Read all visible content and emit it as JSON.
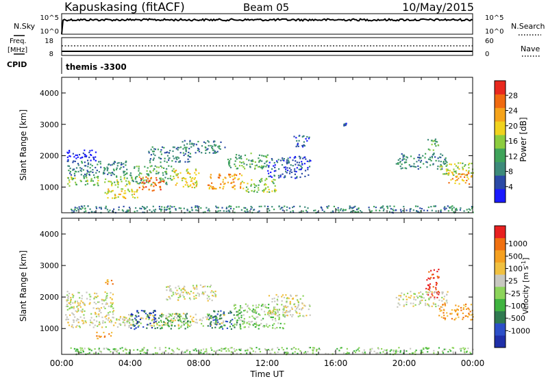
{
  "header": {
    "station": "Kapuskasing (fitACF)",
    "beam": "Beam 05",
    "date": "10/May/2015"
  },
  "status_panels": {
    "nsky_label": "N.Sky",
    "nsky_ticks": [
      "10^5",
      "10^0"
    ],
    "nsearch_label": "N.Search",
    "nsearch_ticks": [
      "10^5",
      "10^0"
    ],
    "freq_label_1": "Freq.",
    "freq_label_2": "[MHz]",
    "freq_ticks": [
      "18",
      "8"
    ],
    "nave_label": "Nave",
    "nave_ticks": [
      "60",
      "0"
    ],
    "cpid_label": "CPID",
    "cpid_value": "themis -3300"
  },
  "chart_data": [
    {
      "type": "heatmap",
      "name": "power",
      "ylabel": "Slant Range [km]",
      "xlabel": "Time UT",
      "x_range_hours": [
        0,
        24
      ],
      "ylim_km": [
        180,
        4500
      ],
      "y_ticks": [
        "1000",
        "2000",
        "3000",
        "4000"
      ],
      "x_ticks": [
        "00:00",
        "04:00",
        "08:00",
        "12:00",
        "16:00",
        "20:00",
        "00:00"
      ],
      "colorbar_label": "Power [dB]",
      "colorbar_ticks": [
        "4",
        "8",
        "12",
        "16",
        "20",
        "24",
        "28"
      ],
      "colors": [
        "#1a1aff",
        "#2b4aa6",
        "#3d8a7a",
        "#3fa35a",
        "#8ccc3f",
        "#f0d21e",
        "#f5a31a",
        "#f06a10",
        "#e8281e"
      ],
      "regions": [
        {
          "t": [
            0.3,
            4.0
          ],
          "r": [
            1050,
            1350
          ],
          "level": 4
        },
        {
          "t": [
            0.3,
            4.0
          ],
          "r": [
            1350,
            1850
          ],
          "level": 2
        },
        {
          "t": [
            0.2,
            2.0
          ],
          "r": [
            1850,
            2200
          ],
          "level": 0
        },
        {
          "t": [
            2.5,
            4.5
          ],
          "r": [
            650,
            1050
          ],
          "level": 5
        },
        {
          "t": [
            4.0,
            6.5
          ],
          "r": [
            1100,
            1700
          ],
          "level": 3
        },
        {
          "t": [
            4.5,
            6.0
          ],
          "r": [
            900,
            1350
          ],
          "level": 7
        },
        {
          "t": [
            5.0,
            7.5
          ],
          "r": [
            1800,
            2300
          ],
          "level": 2
        },
        {
          "t": [
            6.5,
            8.0
          ],
          "r": [
            1000,
            1600
          ],
          "level": 5
        },
        {
          "t": [
            7.0,
            9.5
          ],
          "r": [
            2100,
            2500
          ],
          "level": 2
        },
        {
          "t": [
            8.5,
            10.5
          ],
          "r": [
            950,
            1450
          ],
          "level": 6
        },
        {
          "t": [
            9.5,
            12.0
          ],
          "r": [
            1600,
            2100
          ],
          "level": 3
        },
        {
          "t": [
            10.5,
            12.5
          ],
          "r": [
            850,
            1300
          ],
          "level": 4
        },
        {
          "t": [
            12.0,
            14.5
          ],
          "r": [
            1300,
            2000
          ],
          "level": 1
        },
        {
          "t": [
            13.5,
            14.5
          ],
          "r": [
            2300,
            2700
          ],
          "level": 1
        },
        {
          "t": [
            16.4,
            16.7
          ],
          "r": [
            2900,
            3050
          ],
          "level": 1
        },
        {
          "t": [
            19.5,
            22.5
          ],
          "r": [
            1600,
            2100
          ],
          "level": 2
        },
        {
          "t": [
            21.3,
            22.0
          ],
          "r": [
            2200,
            2600
          ],
          "level": 3
        },
        {
          "t": [
            22.0,
            24.0
          ],
          "r": [
            1400,
            1800
          ],
          "level": 4
        },
        {
          "t": [
            22.5,
            24.0
          ],
          "r": [
            1100,
            1500
          ],
          "level": 6
        },
        {
          "t": [
            0.5,
            24.0
          ],
          "r": [
            200,
            420
          ],
          "level": 2
        }
      ]
    },
    {
      "type": "heatmap",
      "name": "velocity",
      "ylabel": "Slant Range [km]",
      "xlabel": "Time UT",
      "x_range_hours": [
        0,
        24
      ],
      "ylim_km": [
        180,
        4500
      ],
      "y_ticks": [
        "1000",
        "2000",
        "3000",
        "4000"
      ],
      "x_ticks": [
        "00:00",
        "04:00",
        "08:00",
        "12:00",
        "16:00",
        "20:00",
        "00:00"
      ],
      "colorbar_label": "Velocity [m s",
      "colorbar_label_sup": "-1",
      "colorbar_label_end": "]",
      "colorbar_ticks": [
        "1000",
        "500",
        "100",
        "25",
        "-25",
        "-100",
        "-500",
        "-1000"
      ],
      "colors": [
        "#1f2fa8",
        "#2c4fc8",
        "#2f7a50",
        "#3fb33f",
        "#8cd45a",
        "#c8c8c0",
        "#f0c040",
        "#f5a020",
        "#f07010",
        "#e82020"
      ],
      "regions": [
        {
          "t": [
            0.2,
            4.0
          ],
          "r": [
            1050,
            1400
          ],
          "level": 5
        },
        {
          "t": [
            0.2,
            3.0
          ],
          "r": [
            1400,
            2200
          ],
          "level": 5
        },
        {
          "t": [
            3.5,
            9.5
          ],
          "r": [
            1100,
            1500
          ],
          "level": 5
        },
        {
          "t": [
            4.0,
            5.5
          ],
          "r": [
            1000,
            1600
          ],
          "level": 1
        },
        {
          "t": [
            5.5,
            7.5
          ],
          "r": [
            1000,
            1500
          ],
          "level": 3
        },
        {
          "t": [
            6.0,
            9.0
          ],
          "r": [
            1900,
            2400
          ],
          "level": 5
        },
        {
          "t": [
            8.5,
            10.5
          ],
          "r": [
            1000,
            1600
          ],
          "level": 2
        },
        {
          "t": [
            10.0,
            13.0
          ],
          "r": [
            1000,
            1800
          ],
          "level": 4
        },
        {
          "t": [
            12.0,
            14.5
          ],
          "r": [
            1400,
            2100
          ],
          "level": 5
        },
        {
          "t": [
            2.5,
            3.0
          ],
          "r": [
            2400,
            2600
          ],
          "level": 7
        },
        {
          "t": [
            21.2,
            22.0
          ],
          "r": [
            2000,
            2900
          ],
          "level": 9
        },
        {
          "t": [
            19.5,
            22.5
          ],
          "r": [
            1700,
            2200
          ],
          "level": 5
        },
        {
          "t": [
            22.0,
            24.0
          ],
          "r": [
            1300,
            1800
          ],
          "level": 7
        },
        {
          "t": [
            2.0,
            3.0
          ],
          "r": [
            700,
            900
          ],
          "level": 7
        },
        {
          "t": [
            0.5,
            24.0
          ],
          "r": [
            200,
            420
          ],
          "level": 4
        }
      ]
    }
  ]
}
